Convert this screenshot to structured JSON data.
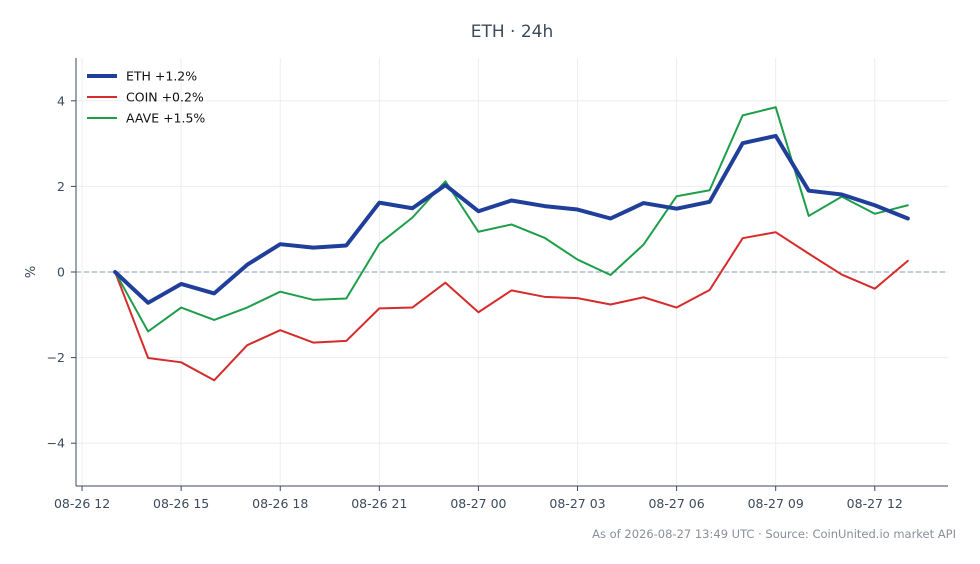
{
  "chart_data": {
    "type": "line",
    "title": "ETH · 24h",
    "xlabel": "",
    "ylabel": "%",
    "ylim": [
      -5,
      5
    ],
    "yticks": [
      -4,
      -2,
      0,
      2,
      4
    ],
    "ytick_labels": [
      "−4",
      "−2",
      "0",
      "2",
      "4"
    ],
    "xticks": [
      "08-26 12:00",
      "08-26 15:00",
      "08-26 18:00",
      "08-26 21:00",
      "08-27 00:00",
      "08-27 03:00",
      "08-27 06:00",
      "08-27 09:00",
      "08-27 12:00"
    ],
    "xtick_labels": [
      "08-26 12",
      "08-26 15",
      "08-26 18",
      "08-26 21",
      "08-27 00",
      "08-27 03",
      "08-27 06",
      "08-27 09",
      "08-27 12"
    ],
    "xlim": [
      "08-26 11:49",
      "08-27 14:13"
    ],
    "x": [
      "08-26 13:00",
      "08-26 14:00",
      "08-26 15:00",
      "08-26 16:00",
      "08-26 17:00",
      "08-26 18:00",
      "08-26 19:00",
      "08-26 20:00",
      "08-26 21:00",
      "08-26 22:00",
      "08-26 23:00",
      "08-27 00:00",
      "08-27 01:00",
      "08-27 02:00",
      "08-27 03:00",
      "08-27 04:00",
      "08-27 05:00",
      "08-27 06:00",
      "08-27 07:00",
      "08-27 08:00",
      "08-27 09:00",
      "08-27 10:00",
      "08-27 11:00",
      "08-27 12:00",
      "08-27 13:00"
    ],
    "series": [
      {
        "name": "ETH +1.2%",
        "color": "#1f3f9a",
        "width": 4,
        "values": [
          0.0,
          -0.72,
          -0.28,
          -0.5,
          0.17,
          0.65,
          0.57,
          0.62,
          1.62,
          1.49,
          2.03,
          1.42,
          1.67,
          1.54,
          1.46,
          1.25,
          1.61,
          1.48,
          1.64,
          3.01,
          3.18,
          1.9,
          1.81,
          1.56,
          1.25
        ]
      },
      {
        "name": "COIN +0.2%",
        "color": "#d62b2b",
        "width": 2,
        "values": [
          0.0,
          -2.01,
          -2.11,
          -2.53,
          -1.71,
          -1.36,
          -1.65,
          -1.61,
          -0.85,
          -0.83,
          -0.25,
          -0.94,
          -0.43,
          -0.58,
          -0.61,
          -0.76,
          -0.59,
          -0.83,
          -0.42,
          0.79,
          0.93,
          0.43,
          -0.06,
          -0.39,
          0.26
        ]
      },
      {
        "name": "AAVE +1.5%",
        "color": "#1e9e4a",
        "width": 2,
        "values": [
          0.0,
          -1.39,
          -0.83,
          -1.12,
          -0.83,
          -0.46,
          -0.65,
          -0.62,
          0.66,
          1.27,
          2.12,
          0.94,
          1.11,
          0.8,
          0.29,
          -0.07,
          0.64,
          1.77,
          1.91,
          3.66,
          3.85,
          1.31,
          1.76,
          1.36,
          1.56
        ]
      }
    ],
    "reference_line": {
      "y": 0,
      "style": "dashed",
      "color": "#8a9bb8"
    },
    "grid": true,
    "legend": "top-left"
  },
  "footer": "As of 2026-08-27 13:49 UTC · Source: CoinUnited.io market API"
}
